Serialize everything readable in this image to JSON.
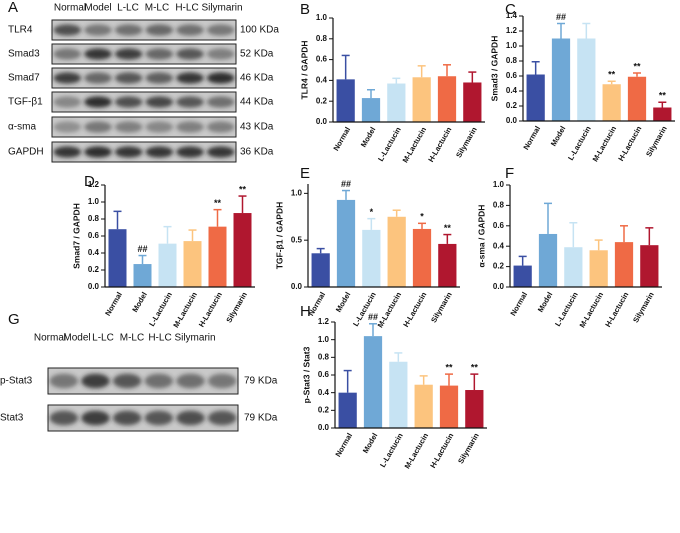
{
  "blots": [
    {
      "panel": "A",
      "lanes": [
        "Normal",
        "Model",
        "L-LC",
        "M-LC",
        "H-LC",
        "Silymarin"
      ],
      "rows": [
        {
          "protein": "TLR4",
          "size": "100 KDa"
        },
        {
          "protein": "Smad3",
          "size": "52 KDa"
        },
        {
          "protein": "Smad7",
          "size": "46 KDa"
        },
        {
          "protein": "TGF-β1",
          "size": "44 KDa"
        },
        {
          "protein": "α-sma",
          "size": "43 KDa"
        },
        {
          "protein": "GAPDH",
          "size": "36 KDa"
        }
      ]
    },
    {
      "panel": "G",
      "lanes": [
        "Normal",
        "Model",
        "L-LC",
        "M-LC",
        "H-LC",
        "Silymarin"
      ],
      "rows": [
        {
          "protein": "p-Stat3",
          "size": "79 KDa"
        },
        {
          "protein": "Stat3",
          "size": "79 KDa"
        }
      ]
    }
  ],
  "chart_data": [
    {
      "type": "bar",
      "panel": "B",
      "ylabel": "TLR4 / GAPDH",
      "categories": [
        "Normal",
        "Model",
        "L-Lactucin",
        "M-Lactucin",
        "H-Lactucin",
        "Silymarin"
      ],
      "colors": [
        "#3a4fa3",
        "#6fa8d6",
        "#c6e3f3",
        "#fcc47e",
        "#ef6a45",
        "#b0172f"
      ],
      "values": [
        0.41,
        0.23,
        0.37,
        0.43,
        0.44,
        0.38
      ],
      "errors": [
        0.23,
        0.08,
        0.05,
        0.11,
        0.11,
        0.1
      ],
      "significance": [
        null,
        null,
        null,
        null,
        null,
        null
      ],
      "ylim": [
        0,
        1.0
      ],
      "yticks": [
        {
          "value": 0,
          "label": "0.0"
        },
        0.2,
        0.4,
        0.6,
        0.8,
        {
          "value": 1,
          "label": "1.0"
        }
      ]
    },
    {
      "type": "bar",
      "panel": "C",
      "ylabel": "Smad3 / GAPDH",
      "categories": [
        "Normal",
        "Model",
        "L-Lactucin",
        "M-Lactucin",
        "H-Lactucin",
        "Silymarin"
      ],
      "colors": [
        "#3a4fa3",
        "#6fa8d6",
        "#c6e3f3",
        "#fcc47e",
        "#ef6a45",
        "#b0172f"
      ],
      "values": [
        0.62,
        1.1,
        1.1,
        0.49,
        0.59,
        0.18
      ],
      "errors": [
        0.17,
        0.2,
        0.2,
        0.04,
        0.05,
        0.07
      ],
      "significance": [
        null,
        "##",
        null,
        "**",
        "**",
        "**"
      ],
      "ylim": [
        0,
        1.4
      ],
      "yticks": [
        {
          "value": 0,
          "label": "0.0"
        },
        0.2,
        0.4,
        0.6,
        0.8,
        {
          "value": 1,
          "label": "1.0"
        },
        1.2,
        1.4
      ]
    },
    {
      "type": "bar",
      "panel": "D",
      "ylabel": "Smad7 / GAPDH",
      "categories": [
        "Normal",
        "Model",
        "L-Lactucin",
        "M-Lactucin",
        "H-Lactucin",
        "Silymarin"
      ],
      "colors": [
        "#3a4fa3",
        "#6fa8d6",
        "#c6e3f3",
        "#fcc47e",
        "#ef6a45",
        "#b0172f"
      ],
      "values": [
        0.68,
        0.27,
        0.51,
        0.54,
        0.71,
        0.87
      ],
      "errors": [
        0.21,
        0.1,
        0.2,
        0.13,
        0.2,
        0.2
      ],
      "significance": [
        null,
        "##",
        null,
        null,
        "**",
        "**"
      ],
      "ylim": [
        0,
        1.2
      ],
      "yticks": [
        {
          "value": 0,
          "label": "0.0"
        },
        0.2,
        0.4,
        0.6,
        0.8,
        {
          "value": 1,
          "label": "1.0"
        },
        1.2
      ]
    },
    {
      "type": "bar",
      "panel": "E",
      "ylabel": "TGF-β1 / GAPDH",
      "categories": [
        "Normal",
        "Model",
        "L-Lactucin",
        "M-Lactucin",
        "H-Lactucin",
        "Silymarin"
      ],
      "colors": [
        "#3a4fa3",
        "#6fa8d6",
        "#c6e3f3",
        "#fcc47e",
        "#ef6a45",
        "#b0172f"
      ],
      "values": [
        0.36,
        0.93,
        0.61,
        0.75,
        0.62,
        0.46
      ],
      "errors": [
        0.05,
        0.1,
        0.12,
        0.07,
        0.06,
        0.1
      ],
      "significance": [
        null,
        "##",
        "*",
        null,
        "*",
        "**"
      ],
      "ylim": [
        0,
        1.1
      ],
      "yticks": [
        {
          "value": 0,
          "label": "0.0"
        },
        0.5,
        {
          "value": 1,
          "label": "1.0"
        }
      ]
    },
    {
      "type": "bar",
      "panel": "F",
      "ylabel": "α-sma / GAPDH",
      "categories": [
        "Normal",
        "Model",
        "L-Lactucin",
        "M-Lactucin",
        "H-Lactucin",
        "Silymarin"
      ],
      "colors": [
        "#3a4fa3",
        "#6fa8d6",
        "#c6e3f3",
        "#fcc47e",
        "#ef6a45",
        "#b0172f"
      ],
      "values": [
        0.21,
        0.52,
        0.39,
        0.36,
        0.44,
        0.41
      ],
      "errors": [
        0.09,
        0.3,
        0.24,
        0.1,
        0.16,
        0.17
      ],
      "significance": [
        null,
        null,
        null,
        null,
        null,
        null
      ],
      "ylim": [
        0,
        1.0
      ],
      "yticks": [
        {
          "value": 0,
          "label": "0.0"
        },
        0.2,
        0.4,
        0.6,
        0.8,
        {
          "value": 1,
          "label": "1.0"
        }
      ]
    },
    {
      "type": "bar",
      "panel": "H",
      "ylabel": "p-Stat3 / Stat3",
      "categories": [
        "Normal",
        "Model",
        "L-Lactucin",
        "M-Lactucin",
        "H-Lactucin",
        "Silymarin"
      ],
      "colors": [
        "#3a4fa3",
        "#6fa8d6",
        "#c6e3f3",
        "#fcc47e",
        "#ef6a45",
        "#b0172f"
      ],
      "values": [
        0.4,
        1.04,
        0.75,
        0.49,
        0.48,
        0.43
      ],
      "errors": [
        0.25,
        0.14,
        0.1,
        0.1,
        0.13,
        0.18
      ],
      "significance": [
        null,
        "##",
        null,
        null,
        "**",
        "**"
      ],
      "ylim": [
        0,
        1.2
      ],
      "yticks": [
        {
          "value": 0,
          "label": "0.0"
        },
        0.2,
        0.4,
        0.6,
        0.8,
        {
          "value": 1,
          "label": "1.0"
        },
        1.2
      ]
    }
  ]
}
